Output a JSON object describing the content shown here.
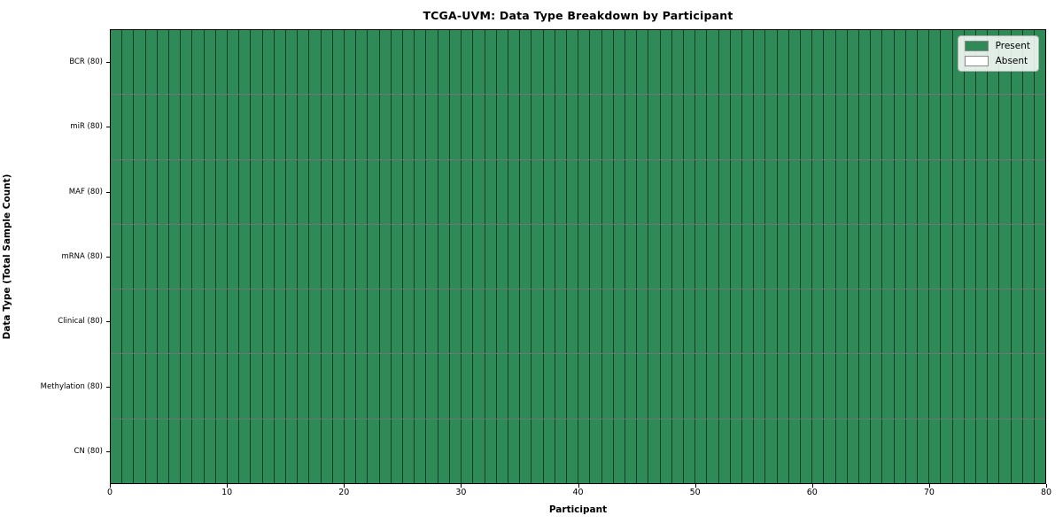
{
  "chart_data": {
    "type": "heatmap",
    "title": "TCGA-UVM: Data Type Breakdown by Participant",
    "xlabel": "Participant",
    "ylabel": "Data Type (Total Sample Count)",
    "n_participants": 80,
    "x_ticks": [
      0,
      10,
      20,
      30,
      40,
      50,
      60,
      70,
      80
    ],
    "xlim": [
      0,
      80
    ],
    "rows": [
      {
        "label": "BCR (80)",
        "present_count": 80
      },
      {
        "label": "miR (80)",
        "present_count": 80
      },
      {
        "label": "MAF (80)",
        "present_count": 80
      },
      {
        "label": "mRNA (80)",
        "present_count": 80
      },
      {
        "label": "Clinical (80)",
        "present_count": 80
      },
      {
        "label": "Methylation (80)",
        "present_count": 80
      },
      {
        "label": "CN (80)",
        "present_count": 80
      }
    ],
    "legend": {
      "position": "top-right",
      "items": [
        {
          "label": "Present",
          "color": "#2e8b57"
        },
        {
          "label": "Absent",
          "color": "#ffffff"
        }
      ]
    },
    "colors": {
      "present": "#2e8b57",
      "absent": "#ffffff",
      "cell_border": "rgba(0,0,0,0.55)",
      "swatch_border": "#8a8a8a"
    },
    "grid": true
  }
}
